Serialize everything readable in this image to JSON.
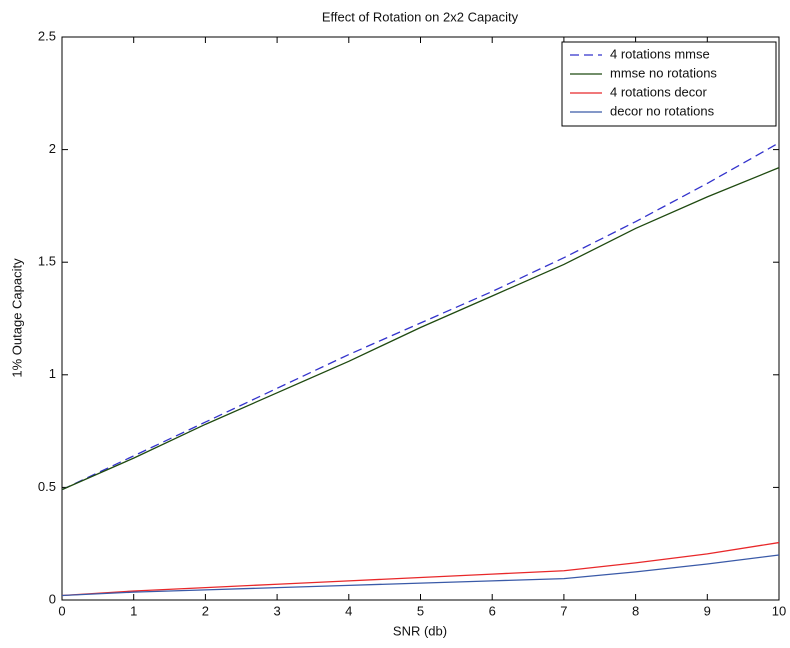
{
  "chart_data": {
    "type": "line",
    "title": "Effect of Rotation on 2x2 Capacity",
    "x_label": "SNR (db)",
    "y_label": "1% Outage Capacity",
    "x": [
      0,
      1,
      2,
      3,
      4,
      5,
      6,
      7,
      8,
      9,
      10
    ],
    "series": [
      {
        "name": "4 rotations mmse",
        "color": "#3333cc",
        "linestyle": "dashed",
        "values": [
          0.49,
          0.64,
          0.79,
          0.94,
          1.09,
          1.23,
          1.37,
          1.52,
          1.68,
          1.85,
          2.03
        ]
      },
      {
        "name": "mmse no rotations",
        "color": "#1f4a10",
        "linestyle": "solid",
        "values": [
          0.49,
          0.63,
          0.78,
          0.92,
          1.06,
          1.21,
          1.35,
          1.49,
          1.65,
          1.79,
          1.92
        ]
      },
      {
        "name": "4 rotations decor",
        "color": "#e8282a",
        "linestyle": "solid",
        "values": [
          0.02,
          0.04,
          0.055,
          0.07,
          0.085,
          0.1,
          0.115,
          0.13,
          0.165,
          0.205,
          0.255
        ]
      },
      {
        "name": "decor no rotations",
        "color": "#3a5aa8",
        "linestyle": "solid",
        "values": [
          0.02,
          0.035,
          0.045,
          0.055,
          0.065,
          0.075,
          0.085,
          0.095,
          0.125,
          0.16,
          0.2
        ]
      }
    ],
    "xlim": [
      0,
      10
    ],
    "xticks": [
      0,
      1,
      2,
      3,
      4,
      5,
      6,
      7,
      8,
      9,
      10
    ],
    "ylim": [
      0,
      2.5
    ],
    "yticks": [
      0,
      0.5,
      1,
      1.5,
      2,
      2.5
    ],
    "grid": false,
    "legend": "upper right"
  }
}
